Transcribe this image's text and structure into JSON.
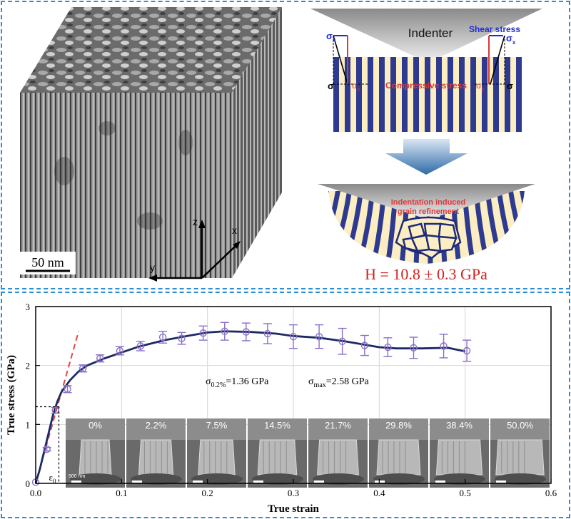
{
  "top_left": {
    "scale_bar": "50 nm",
    "axes": {
      "z": "z",
      "x": "x",
      "y": "y"
    }
  },
  "top_right": {
    "indenter": "Indenter",
    "shear_stress": "Shear stress",
    "compressive_stress": "Compressive stress",
    "sigma": "σ",
    "sigma_x": "σ",
    "sigma_x_sub": "x",
    "sigma_z": "σ",
    "sigma_z_sub": "z",
    "refinement_line1": "Indentation induced",
    "refinement_line2": "grain refinement",
    "hardness": "H = 10.8 ± 0.3 GPa"
  },
  "chart_data": {
    "type": "line",
    "xlabel": "True strain",
    "ylabel": "True stress (GPa)",
    "xlim": [
      0.0,
      0.6
    ],
    "ylim": [
      0,
      3
    ],
    "x_ticks": [
      "0.0",
      "0.1",
      "0.2",
      "0.3",
      "0.4",
      "0.5",
      "0.6"
    ],
    "y_ticks": [
      "0",
      "1",
      "2",
      "3"
    ],
    "grid": true,
    "curve": {
      "x": [
        0.0,
        0.005,
        0.01,
        0.015,
        0.02,
        0.025,
        0.03,
        0.04,
        0.05,
        0.06,
        0.08,
        0.1,
        0.12,
        0.15,
        0.18,
        0.2,
        0.22,
        0.25,
        0.28,
        0.3,
        0.33,
        0.36,
        0.38,
        0.4,
        0.42,
        0.45,
        0.48,
        0.5
      ],
      "y": [
        0.0,
        0.25,
        0.55,
        0.85,
        1.15,
        1.38,
        1.55,
        1.75,
        1.9,
        2.0,
        2.12,
        2.22,
        2.32,
        2.43,
        2.51,
        2.56,
        2.58,
        2.57,
        2.54,
        2.5,
        2.47,
        2.41,
        2.36,
        2.31,
        2.29,
        2.29,
        2.3,
        2.24
      ]
    },
    "points": [
      {
        "x": 0.0,
        "y": 0.02,
        "err": 0.0
      },
      {
        "x": 0.013,
        "y": 0.58,
        "err": 0.03
      },
      {
        "x": 0.023,
        "y": 1.24,
        "err": 0.05
      },
      {
        "x": 0.037,
        "y": 1.6,
        "err": 0.06
      },
      {
        "x": 0.055,
        "y": 1.95,
        "err": 0.06
      },
      {
        "x": 0.075,
        "y": 2.12,
        "err": 0.06
      },
      {
        "x": 0.098,
        "y": 2.25,
        "err": 0.07
      },
      {
        "x": 0.122,
        "y": 2.33,
        "err": 0.08
      },
      {
        "x": 0.148,
        "y": 2.48,
        "err": 0.1
      },
      {
        "x": 0.17,
        "y": 2.46,
        "err": 0.1
      },
      {
        "x": 0.195,
        "y": 2.55,
        "err": 0.12
      },
      {
        "x": 0.22,
        "y": 2.58,
        "err": 0.15
      },
      {
        "x": 0.245,
        "y": 2.57,
        "err": 0.15
      },
      {
        "x": 0.27,
        "y": 2.54,
        "err": 0.17
      },
      {
        "x": 0.3,
        "y": 2.49,
        "err": 0.2
      },
      {
        "x": 0.33,
        "y": 2.49,
        "err": 0.2
      },
      {
        "x": 0.357,
        "y": 2.41,
        "err": 0.22
      },
      {
        "x": 0.383,
        "y": 2.34,
        "err": 0.17
      },
      {
        "x": 0.41,
        "y": 2.31,
        "err": 0.16
      },
      {
        "x": 0.44,
        "y": 2.3,
        "err": 0.18
      },
      {
        "x": 0.475,
        "y": 2.33,
        "err": 0.2
      },
      {
        "x": 0.502,
        "y": 2.25,
        "err": 0.18
      }
    ],
    "elastic_line": {
      "x": [
        0.0,
        0.05
      ],
      "y": [
        0.0,
        2.58
      ]
    },
    "eps0": {
      "x": 0.027,
      "y": 1.3,
      "label": "ε",
      "sub": "0"
    },
    "annotations": [
      {
        "base": "σ",
        "sub": "0.2%",
        "rest": "=1.36 GPa"
      },
      {
        "base": "σ",
        "sub": "max",
        "rest": "=2.58 GPa"
      }
    ]
  },
  "insets": {
    "labels": [
      "0%",
      "2.2%",
      "7.5%",
      "14.5%",
      "21.7%",
      "29.8%",
      "38.4%",
      "50.0%"
    ],
    "scale_label": "500 nm"
  }
}
